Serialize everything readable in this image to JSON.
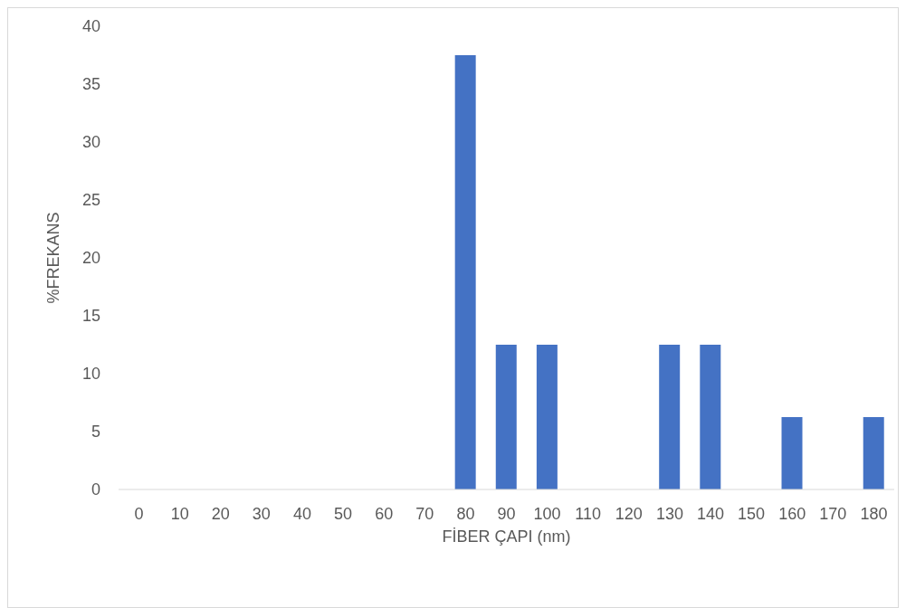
{
  "chart_data": {
    "type": "bar",
    "xlabel": "FİBER ÇAPI (nm)",
    "ylabel": "%FREKANS",
    "categories": [
      "0",
      "10",
      "20",
      "30",
      "40",
      "50",
      "60",
      "70",
      "80",
      "90",
      "100",
      "110",
      "120",
      "130",
      "140",
      "150",
      "160",
      "170",
      "180"
    ],
    "values": [
      0,
      0,
      0,
      0,
      0,
      0,
      0,
      0,
      37.5,
      12.5,
      12.5,
      0,
      0,
      12.5,
      12.5,
      0,
      6.25,
      0,
      6.25
    ],
    "color": "#4472c4",
    "ylim": [
      0,
      40
    ],
    "yticks": [
      0,
      5,
      10,
      15,
      20,
      25,
      30,
      35,
      40
    ]
  }
}
